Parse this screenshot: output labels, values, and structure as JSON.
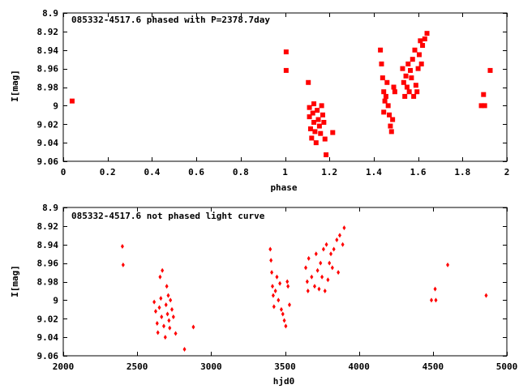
{
  "colors": {
    "points": "#ff0000",
    "axes": "#000000",
    "background": "#ffffff"
  },
  "chart_data": [
    {
      "type": "scatter",
      "title": "085332-4517.6 phased with P=2378.7day",
      "xlabel": "phase",
      "ylabel": "I[mag]",
      "xlim": [
        0,
        2
      ],
      "ylim": [
        8.9,
        9.06
      ],
      "y_inverted": true,
      "grid": false,
      "legend": "none",
      "marker": "filled-square",
      "xticks": [
        "0",
        "0.2",
        "0.4",
        "0.6",
        "0.8",
        "1",
        "1.2",
        "1.4",
        "1.6",
        "1.8",
        "2"
      ],
      "yticks": [
        "8.9",
        "8.92",
        "8.94",
        "8.96",
        "8.98",
        "9",
        "9.02",
        "9.04",
        "9.06"
      ],
      "points": [
        [
          0.04,
          8.995
        ],
        [
          1.005,
          8.942
        ],
        [
          1.005,
          8.962
        ],
        [
          1.105,
          8.975
        ],
        [
          1.11,
          9.002
        ],
        [
          1.11,
          9.012
        ],
        [
          1.115,
          9.025
        ],
        [
          1.12,
          9.035
        ],
        [
          1.125,
          9.008
        ],
        [
          1.13,
          9.018
        ],
        [
          1.13,
          8.998
        ],
        [
          1.135,
          9.028
        ],
        [
          1.14,
          9.04
        ],
        [
          1.145,
          9.005
        ],
        [
          1.15,
          9.015
        ],
        [
          1.155,
          9.022
        ],
        [
          1.16,
          9.03
        ],
        [
          1.165,
          9.0
        ],
        [
          1.17,
          9.01
        ],
        [
          1.175,
          9.018
        ],
        [
          1.18,
          9.036
        ],
        [
          1.185,
          9.053
        ],
        [
          1.215,
          9.029
        ],
        [
          1.43,
          8.94
        ],
        [
          1.435,
          8.955
        ],
        [
          1.44,
          8.97
        ],
        [
          1.445,
          8.985
        ],
        [
          1.45,
          8.995
        ],
        [
          1.445,
          9.007
        ],
        [
          1.455,
          8.99
        ],
        [
          1.46,
          8.975
        ],
        [
          1.465,
          9.0
        ],
        [
          1.47,
          9.01
        ],
        [
          1.475,
          9.022
        ],
        [
          1.48,
          9.028
        ],
        [
          1.485,
          9.015
        ],
        [
          1.49,
          8.98
        ],
        [
          1.495,
          8.985
        ],
        [
          1.53,
          8.96
        ],
        [
          1.535,
          8.975
        ],
        [
          1.54,
          8.99
        ],
        [
          1.545,
          8.968
        ],
        [
          1.55,
          8.98
        ],
        [
          1.555,
          8.955
        ],
        [
          1.56,
          8.985
        ],
        [
          1.565,
          8.962
        ],
        [
          1.57,
          8.97
        ],
        [
          1.575,
          8.95
        ],
        [
          1.58,
          8.99
        ],
        [
          1.585,
          8.94
        ],
        [
          1.59,
          8.978
        ],
        [
          1.595,
          8.985
        ],
        [
          1.6,
          8.96
        ],
        [
          1.605,
          8.945
        ],
        [
          1.61,
          8.93
        ],
        [
          1.615,
          8.955
        ],
        [
          1.62,
          8.935
        ],
        [
          1.63,
          8.928
        ],
        [
          1.64,
          8.922
        ],
        [
          1.885,
          9.0
        ],
        [
          1.895,
          8.988
        ],
        [
          1.9,
          9.0
        ],
        [
          1.925,
          8.962
        ]
      ]
    },
    {
      "type": "scatter",
      "title": "085332-4517.6 not phased light curve",
      "xlabel": "hjd0",
      "ylabel": "I[mag]",
      "xlim": [
        2000,
        5000
      ],
      "ylim": [
        8.9,
        9.06
      ],
      "y_inverted": true,
      "grid": false,
      "legend": "none",
      "marker": "diamond",
      "xticks": [
        "2000",
        "2500",
        "3000",
        "3500",
        "4000",
        "4500",
        "5000"
      ],
      "yticks": [
        "8.9",
        "8.92",
        "8.94",
        "8.96",
        "8.98",
        "9",
        "9.02",
        "9.04",
        "9.06"
      ],
      "points": [
        [
          2400,
          8.942
        ],
        [
          2405,
          8.962
        ],
        [
          2615,
          9.002
        ],
        [
          2625,
          9.012
        ],
        [
          2635,
          9.025
        ],
        [
          2640,
          9.035
        ],
        [
          2650,
          9.008
        ],
        [
          2655,
          8.975
        ],
        [
          2660,
          8.998
        ],
        [
          2665,
          9.018
        ],
        [
          2670,
          8.968
        ],
        [
          2680,
          9.028
        ],
        [
          2690,
          9.04
        ],
        [
          2695,
          9.005
        ],
        [
          2700,
          8.985
        ],
        [
          2705,
          9.015
        ],
        [
          2710,
          8.995
        ],
        [
          2715,
          9.022
        ],
        [
          2720,
          9.03
        ],
        [
          2725,
          9.0
        ],
        [
          2735,
          9.01
        ],
        [
          2745,
          9.018
        ],
        [
          2760,
          9.036
        ],
        [
          2820,
          9.053
        ],
        [
          2880,
          9.029
        ],
        [
          3400,
          8.945
        ],
        [
          3405,
          8.957
        ],
        [
          3410,
          8.97
        ],
        [
          3415,
          8.985
        ],
        [
          3420,
          8.995
        ],
        [
          3425,
          9.007
        ],
        [
          3435,
          8.99
        ],
        [
          3445,
          8.975
        ],
        [
          3455,
          9.0
        ],
        [
          3465,
          8.982
        ],
        [
          3475,
          9.01
        ],
        [
          3485,
          9.015
        ],
        [
          3495,
          9.022
        ],
        [
          3505,
          9.028
        ],
        [
          3515,
          8.98
        ],
        [
          3520,
          8.985
        ],
        [
          3530,
          9.005
        ],
        [
          3640,
          8.965
        ],
        [
          3650,
          8.98
        ],
        [
          3655,
          8.99
        ],
        [
          3660,
          8.955
        ],
        [
          3680,
          8.975
        ],
        [
          3700,
          8.985
        ],
        [
          3710,
          8.95
        ],
        [
          3720,
          8.968
        ],
        [
          3730,
          8.988
        ],
        [
          3740,
          8.96
        ],
        [
          3750,
          8.975
        ],
        [
          3760,
          8.945
        ],
        [
          3770,
          8.99
        ],
        [
          3780,
          8.94
        ],
        [
          3790,
          8.978
        ],
        [
          3800,
          8.96
        ],
        [
          3810,
          8.95
        ],
        [
          3820,
          8.965
        ],
        [
          3830,
          8.945
        ],
        [
          3850,
          8.935
        ],
        [
          3860,
          8.97
        ],
        [
          3870,
          8.93
        ],
        [
          3890,
          8.94
        ],
        [
          3900,
          8.922
        ],
        [
          4490,
          9.0
        ],
        [
          4515,
          8.988
        ],
        [
          4520,
          9.0
        ],
        [
          4600,
          8.962
        ],
        [
          4860,
          8.995
        ]
      ]
    }
  ]
}
